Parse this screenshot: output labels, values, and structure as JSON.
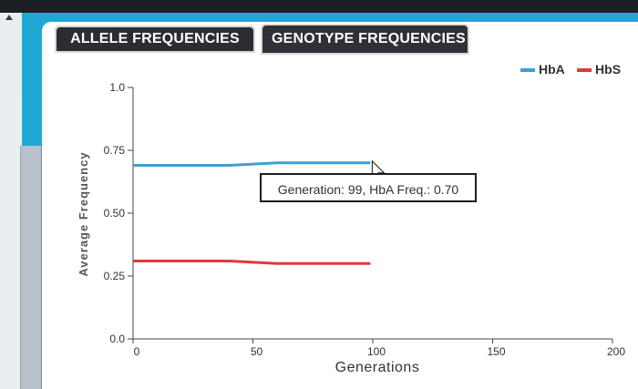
{
  "tabs": [
    {
      "label": "ALLELE FREQUENCIES",
      "active": true
    },
    {
      "label": "GENOTYPE FREQUENCIES",
      "active": false
    }
  ],
  "tooltip": {
    "text": "Generation: 99, HbA Freq.: 0.70"
  },
  "chart_data": {
    "type": "line",
    "xlabel": "Generations",
    "ylabel": "Average Frequency",
    "xlim": [
      0,
      200
    ],
    "ylim": [
      0,
      1.0
    ],
    "x_ticks": [
      "0",
      "50",
      "100",
      "150",
      "200"
    ],
    "y_ticks": [
      "0.0",
      "0.25",
      "0.50",
      "0.75",
      "1.0"
    ],
    "legend_position": "top-right",
    "series": [
      {
        "name": "HbA",
        "color": "#3fa0cf",
        "x": [
          0,
          20,
          40,
          60,
          80,
          99
        ],
        "y": [
          0.69,
          0.69,
          0.69,
          0.7,
          0.7,
          0.7
        ]
      },
      {
        "name": "HbS",
        "color": "#e0383a",
        "x": [
          0,
          20,
          40,
          60,
          80,
          99
        ],
        "y": [
          0.31,
          0.31,
          0.31,
          0.3,
          0.3,
          0.3
        ]
      }
    ]
  }
}
